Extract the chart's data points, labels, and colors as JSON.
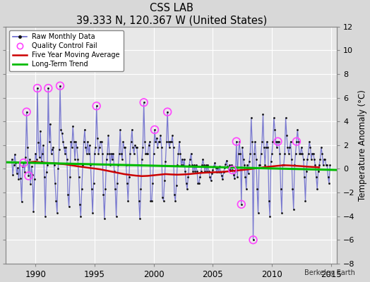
{
  "title": "CSS LAB",
  "subtitle": "39.333 N, 120.367 W (United States)",
  "ylabel": "Temperature Anomaly (°C)",
  "attribution": "Berkeley Earth",
  "ylim": [
    -8,
    12
  ],
  "yticks": [
    -8,
    -6,
    -4,
    -2,
    0,
    2,
    4,
    6,
    8,
    10,
    12
  ],
  "xlim": [
    1987.5,
    2015.5
  ],
  "xticks": [
    1990,
    1995,
    2000,
    2005,
    2010,
    2015
  ],
  "bg_color": "#d8d8d8",
  "plot_bg_color": "#e8e8e8",
  "grid_color": "#ffffff",
  "raw_line_color": "#6666cc",
  "dot_color": "#111111",
  "moving_avg_color": "#cc0000",
  "trend_color": "#00bb00",
  "qc_fail_color": "#ff44ff",
  "raw_data": [
    [
      1988.0,
      0.8
    ],
    [
      1988.083,
      -0.5
    ],
    [
      1988.167,
      0.3
    ],
    [
      1988.25,
      1.2
    ],
    [
      1988.333,
      0.5
    ],
    [
      1988.417,
      -0.4
    ],
    [
      1988.5,
      0.1
    ],
    [
      1988.583,
      -0.9
    ],
    [
      1988.667,
      0.5
    ],
    [
      1988.75,
      -0.8
    ],
    [
      1988.833,
      -2.8
    ],
    [
      1988.917,
      0.2
    ],
    [
      1989.0,
      0.5
    ],
    [
      1989.083,
      -0.3
    ],
    [
      1989.167,
      1.0
    ],
    [
      1989.25,
      4.8
    ],
    [
      1989.333,
      1.8
    ],
    [
      1989.417,
      -0.6
    ],
    [
      1989.5,
      0.8
    ],
    [
      1989.583,
      -1.3
    ],
    [
      1989.667,
      0.2
    ],
    [
      1989.75,
      -0.5
    ],
    [
      1989.833,
      -3.6
    ],
    [
      1989.917,
      -0.9
    ],
    [
      1990.0,
      1.3
    ],
    [
      1990.083,
      0.8
    ],
    [
      1990.167,
      6.8
    ],
    [
      1990.25,
      2.2
    ],
    [
      1990.333,
      1.0
    ],
    [
      1990.417,
      3.2
    ],
    [
      1990.5,
      0.6
    ],
    [
      1990.583,
      1.3
    ],
    [
      1990.667,
      2.0
    ],
    [
      1990.75,
      -0.7
    ],
    [
      1990.833,
      -4.0
    ],
    [
      1990.917,
      -0.3
    ],
    [
      1991.0,
      0.3
    ],
    [
      1991.083,
      6.8
    ],
    [
      1991.167,
      2.3
    ],
    [
      1991.25,
      3.8
    ],
    [
      1991.333,
      1.3
    ],
    [
      1991.417,
      1.6
    ],
    [
      1991.5,
      1.8
    ],
    [
      1991.583,
      0.3
    ],
    [
      1991.667,
      -1.2
    ],
    [
      1991.75,
      -2.7
    ],
    [
      1991.833,
      -3.7
    ],
    [
      1991.917,
      0.0
    ],
    [
      1992.0,
      1.6
    ],
    [
      1992.083,
      7.0
    ],
    [
      1992.167,
      3.3
    ],
    [
      1992.25,
      3.0
    ],
    [
      1992.333,
      2.3
    ],
    [
      1992.417,
      1.8
    ],
    [
      1992.5,
      1.3
    ],
    [
      1992.583,
      1.8
    ],
    [
      1992.667,
      0.8
    ],
    [
      1992.75,
      -2.2
    ],
    [
      1992.833,
      -3.2
    ],
    [
      1992.917,
      -0.7
    ],
    [
      1993.0,
      2.3
    ],
    [
      1993.083,
      1.8
    ],
    [
      1993.167,
      3.6
    ],
    [
      1993.25,
      2.3
    ],
    [
      1993.333,
      0.8
    ],
    [
      1993.417,
      2.3
    ],
    [
      1993.5,
      1.8
    ],
    [
      1993.583,
      0.8
    ],
    [
      1993.667,
      -0.7
    ],
    [
      1993.75,
      -3.0
    ],
    [
      1993.833,
      -4.0
    ],
    [
      1993.917,
      -1.7
    ],
    [
      1994.0,
      0.3
    ],
    [
      1994.083,
      2.3
    ],
    [
      1994.167,
      3.3
    ],
    [
      1994.25,
      1.8
    ],
    [
      1994.333,
      1.3
    ],
    [
      1994.417,
      2.3
    ],
    [
      1994.5,
      1.3
    ],
    [
      1994.583,
      2.0
    ],
    [
      1994.667,
      0.3
    ],
    [
      1994.75,
      -1.7
    ],
    [
      1994.833,
      -3.7
    ],
    [
      1994.917,
      -1.2
    ],
    [
      1995.0,
      1.3
    ],
    [
      1995.083,
      1.8
    ],
    [
      1995.167,
      5.3
    ],
    [
      1995.25,
      2.6
    ],
    [
      1995.333,
      1.3
    ],
    [
      1995.417,
      1.8
    ],
    [
      1995.5,
      2.3
    ],
    [
      1995.583,
      2.3
    ],
    [
      1995.667,
      1.3
    ],
    [
      1995.75,
      -2.2
    ],
    [
      1995.833,
      -4.2
    ],
    [
      1995.917,
      -1.7
    ],
    [
      1996.0,
      0.8
    ],
    [
      1996.083,
      1.3
    ],
    [
      1996.167,
      2.8
    ],
    [
      1996.25,
      1.3
    ],
    [
      1996.333,
      0.3
    ],
    [
      1996.417,
      1.3
    ],
    [
      1996.5,
      0.8
    ],
    [
      1996.583,
      1.3
    ],
    [
      1996.667,
      -0.2
    ],
    [
      1996.75,
      -1.7
    ],
    [
      1996.833,
      -4.0
    ],
    [
      1996.917,
      -1.2
    ],
    [
      1997.0,
      0.3
    ],
    [
      1997.083,
      1.3
    ],
    [
      1997.167,
      3.3
    ],
    [
      1997.25,
      1.3
    ],
    [
      1997.333,
      0.8
    ],
    [
      1997.417,
      2.3
    ],
    [
      1997.5,
      1.8
    ],
    [
      1997.583,
      1.8
    ],
    [
      1997.667,
      0.3
    ],
    [
      1997.75,
      -1.2
    ],
    [
      1997.833,
      -2.7
    ],
    [
      1997.917,
      -0.7
    ],
    [
      1998.0,
      1.3
    ],
    [
      1998.083,
      2.3
    ],
    [
      1998.167,
      3.3
    ],
    [
      1998.25,
      1.8
    ],
    [
      1998.333,
      1.3
    ],
    [
      1998.417,
      2.0
    ],
    [
      1998.5,
      1.8
    ],
    [
      1998.583,
      1.8
    ],
    [
      1998.667,
      0.3
    ],
    [
      1998.75,
      -2.7
    ],
    [
      1998.833,
      -4.2
    ],
    [
      1998.917,
      -1.7
    ],
    [
      1999.0,
      0.8
    ],
    [
      1999.083,
      1.8
    ],
    [
      1999.167,
      5.6
    ],
    [
      1999.25,
      2.3
    ],
    [
      1999.333,
      1.3
    ],
    [
      1999.417,
      1.3
    ],
    [
      1999.5,
      1.3
    ],
    [
      1999.583,
      2.0
    ],
    [
      1999.667,
      2.3
    ],
    [
      1999.75,
      -2.7
    ],
    [
      1999.833,
      -2.7
    ],
    [
      1999.917,
      -1.2
    ],
    [
      2000.0,
      1.3
    ],
    [
      2000.083,
      3.3
    ],
    [
      2000.167,
      2.3
    ],
    [
      2000.25,
      2.6
    ],
    [
      2000.333,
      1.8
    ],
    [
      2000.417,
      2.3
    ],
    [
      2000.5,
      2.3
    ],
    [
      2000.583,
      2.8
    ],
    [
      2000.667,
      1.8
    ],
    [
      2000.75,
      -2.4
    ],
    [
      2000.833,
      -2.7
    ],
    [
      2000.917,
      -1.0
    ],
    [
      2001.0,
      0.6
    ],
    [
      2001.083,
      2.3
    ],
    [
      2001.167,
      4.8
    ],
    [
      2001.25,
      2.3
    ],
    [
      2001.333,
      1.8
    ],
    [
      2001.417,
      2.3
    ],
    [
      2001.5,
      2.3
    ],
    [
      2001.583,
      2.8
    ],
    [
      2001.667,
      1.8
    ],
    [
      2001.75,
      -2.2
    ],
    [
      2001.833,
      -2.7
    ],
    [
      2001.917,
      -1.4
    ],
    [
      2002.0,
      0.3
    ],
    [
      2002.083,
      1.3
    ],
    [
      2002.167,
      2.3
    ],
    [
      2002.25,
      1.3
    ],
    [
      2002.333,
      0.3
    ],
    [
      2002.417,
      0.8
    ],
    [
      2002.5,
      0.3
    ],
    [
      2002.583,
      0.8
    ],
    [
      2002.667,
      -0.2
    ],
    [
      2002.75,
      -1.2
    ],
    [
      2002.833,
      -1.7
    ],
    [
      2002.917,
      -0.7
    ],
    [
      2003.0,
      0.3
    ],
    [
      2003.083,
      0.8
    ],
    [
      2003.167,
      1.3
    ],
    [
      2003.25,
      0.3
    ],
    [
      2003.333,
      -0.2
    ],
    [
      2003.417,
      0.3
    ],
    [
      2003.5,
      -0.2
    ],
    [
      2003.583,
      0.3
    ],
    [
      2003.667,
      -0.2
    ],
    [
      2003.75,
      -1.2
    ],
    [
      2003.833,
      -1.2
    ],
    [
      2003.917,
      -0.7
    ],
    [
      2004.0,
      -0.2
    ],
    [
      2004.083,
      0.3
    ],
    [
      2004.167,
      0.8
    ],
    [
      2004.25,
      0.3
    ],
    [
      2004.333,
      -0.2
    ],
    [
      2004.417,
      0.3
    ],
    [
      2004.5,
      -0.2
    ],
    [
      2004.583,
      0.3
    ],
    [
      2004.667,
      -0.2
    ],
    [
      2004.75,
      -0.7
    ],
    [
      2004.833,
      -1.0
    ],
    [
      2004.917,
      -0.4
    ],
    [
      2005.0,
      -0.1
    ],
    [
      2005.083,
      0.2
    ],
    [
      2005.167,
      0.5
    ],
    [
      2005.25,
      0.1
    ],
    [
      2005.333,
      -0.3
    ],
    [
      2005.417,
      0.1
    ],
    [
      2005.5,
      -0.3
    ],
    [
      2005.583,
      0.2
    ],
    [
      2005.667,
      -0.3
    ],
    [
      2005.75,
      -0.6
    ],
    [
      2005.833,
      -0.9
    ],
    [
      2005.917,
      -0.3
    ],
    [
      2006.0,
      0.1
    ],
    [
      2006.083,
      0.4
    ],
    [
      2006.167,
      0.7
    ],
    [
      2006.25,
      0.2
    ],
    [
      2006.333,
      -0.1
    ],
    [
      2006.417,
      0.3
    ],
    [
      2006.5,
      -0.1
    ],
    [
      2006.583,
      0.3
    ],
    [
      2006.667,
      -0.1
    ],
    [
      2006.75,
      -0.5
    ],
    [
      2006.833,
      -0.8
    ],
    [
      2006.917,
      -0.2
    ],
    [
      2007.0,
      2.3
    ],
    [
      2007.083,
      -0.7
    ],
    [
      2007.167,
      1.3
    ],
    [
      2007.25,
      2.3
    ],
    [
      2007.333,
      1.3
    ],
    [
      2007.417,
      -3.0
    ],
    [
      2007.5,
      1.8
    ],
    [
      2007.583,
      0.8
    ],
    [
      2007.667,
      0.3
    ],
    [
      2007.75,
      -0.7
    ],
    [
      2007.833,
      -1.7
    ],
    [
      2007.917,
      0.3
    ],
    [
      2008.0,
      -0.4
    ],
    [
      2008.083,
      0.6
    ],
    [
      2008.167,
      1.3
    ],
    [
      2008.25,
      4.3
    ],
    [
      2008.333,
      2.3
    ],
    [
      2008.417,
      -6.0
    ],
    [
      2008.5,
      1.3
    ],
    [
      2008.583,
      2.3
    ],
    [
      2008.667,
      0.8
    ],
    [
      2008.75,
      -1.7
    ],
    [
      2008.833,
      -3.7
    ],
    [
      2008.917,
      0.3
    ],
    [
      2009.0,
      0.3
    ],
    [
      2009.083,
      1.3
    ],
    [
      2009.167,
      2.3
    ],
    [
      2009.25,
      4.6
    ],
    [
      2009.333,
      1.8
    ],
    [
      2009.417,
      0.3
    ],
    [
      2009.5,
      1.8
    ],
    [
      2009.583,
      2.3
    ],
    [
      2009.667,
      1.8
    ],
    [
      2009.75,
      -2.7
    ],
    [
      2009.833,
      -4.0
    ],
    [
      2009.917,
      0.6
    ],
    [
      2010.0,
      1.3
    ],
    [
      2010.083,
      2.3
    ],
    [
      2010.167,
      4.3
    ],
    [
      2010.25,
      3.3
    ],
    [
      2010.333,
      2.3
    ],
    [
      2010.417,
      1.8
    ],
    [
      2010.5,
      2.3
    ],
    [
      2010.583,
      2.3
    ],
    [
      2010.667,
      1.3
    ],
    [
      2010.75,
      -1.7
    ],
    [
      2010.833,
      -3.7
    ],
    [
      2010.917,
      0.3
    ],
    [
      2011.0,
      0.3
    ],
    [
      2011.083,
      1.3
    ],
    [
      2011.167,
      4.3
    ],
    [
      2011.25,
      2.8
    ],
    [
      2011.333,
      1.8
    ],
    [
      2011.417,
      1.3
    ],
    [
      2011.5,
      1.8
    ],
    [
      2011.583,
      2.3
    ],
    [
      2011.667,
      0.8
    ],
    [
      2011.75,
      -1.7
    ],
    [
      2011.833,
      -3.4
    ],
    [
      2011.917,
      0.3
    ],
    [
      2012.0,
      1.3
    ],
    [
      2012.083,
      2.3
    ],
    [
      2012.167,
      3.3
    ],
    [
      2012.25,
      2.3
    ],
    [
      2012.333,
      1.3
    ],
    [
      2012.417,
      1.3
    ],
    [
      2012.5,
      1.8
    ],
    [
      2012.583,
      1.3
    ],
    [
      2012.667,
      0.8
    ],
    [
      2012.75,
      -0.7
    ],
    [
      2012.833,
      -2.7
    ],
    [
      2012.917,
      -0.2
    ],
    [
      2013.0,
      0.8
    ],
    [
      2013.083,
      1.3
    ],
    [
      2013.167,
      2.3
    ],
    [
      2013.25,
      1.8
    ],
    [
      2013.333,
      0.8
    ],
    [
      2013.417,
      1.3
    ],
    [
      2013.5,
      1.3
    ],
    [
      2013.583,
      0.8
    ],
    [
      2013.667,
      0.3
    ],
    [
      2013.75,
      -0.7
    ],
    [
      2013.833,
      -1.7
    ],
    [
      2013.917,
      -0.2
    ],
    [
      2014.0,
      0.3
    ],
    [
      2014.083,
      0.8
    ],
    [
      2014.167,
      1.8
    ],
    [
      2014.25,
      1.3
    ],
    [
      2014.333,
      0.3
    ],
    [
      2014.417,
      0.8
    ],
    [
      2014.5,
      0.8
    ],
    [
      2014.583,
      0.3
    ],
    [
      2014.667,
      0.3
    ],
    [
      2014.75,
      -0.7
    ],
    [
      2014.833,
      -1.2
    ],
    [
      2014.917,
      0.3
    ]
  ],
  "qc_fail_points": [
    [
      1989.0,
      0.5
    ],
    [
      1989.417,
      -0.6
    ],
    [
      1989.25,
      4.8
    ],
    [
      1990.167,
      6.8
    ],
    [
      1991.083,
      6.8
    ],
    [
      1992.083,
      7.0
    ],
    [
      1995.167,
      5.3
    ],
    [
      1999.167,
      5.6
    ],
    [
      2000.083,
      3.3
    ],
    [
      2001.167,
      4.8
    ],
    [
      2006.667,
      -0.1
    ],
    [
      2007.0,
      2.3
    ],
    [
      2007.417,
      -3.0
    ],
    [
      2008.417,
      -6.0
    ],
    [
      2010.5,
      2.3
    ],
    [
      2012.083,
      2.3
    ]
  ],
  "moving_avg": [
    [
      1989.5,
      0.55
    ],
    [
      1990.0,
      0.6
    ],
    [
      1990.5,
      0.52
    ],
    [
      1991.0,
      0.5
    ],
    [
      1991.5,
      0.48
    ],
    [
      1992.0,
      0.42
    ],
    [
      1992.5,
      0.38
    ],
    [
      1993.0,
      0.3
    ],
    [
      1993.5,
      0.22
    ],
    [
      1994.0,
      0.15
    ],
    [
      1994.5,
      0.08
    ],
    [
      1995.0,
      0.02
    ],
    [
      1995.5,
      -0.05
    ],
    [
      1996.0,
      -0.15
    ],
    [
      1996.5,
      -0.25
    ],
    [
      1997.0,
      -0.35
    ],
    [
      1997.5,
      -0.45
    ],
    [
      1998.0,
      -0.52
    ],
    [
      1998.5,
      -0.58
    ],
    [
      1999.0,
      -0.62
    ],
    [
      1999.5,
      -0.6
    ],
    [
      2000.0,
      -0.55
    ],
    [
      2000.5,
      -0.5
    ],
    [
      2001.0,
      -0.45
    ],
    [
      2001.5,
      -0.48
    ],
    [
      2002.0,
      -0.5
    ],
    [
      2002.5,
      -0.48
    ],
    [
      2003.0,
      -0.45
    ],
    [
      2003.5,
      -0.4
    ],
    [
      2004.0,
      -0.35
    ],
    [
      2004.5,
      -0.32
    ],
    [
      2005.0,
      -0.3
    ],
    [
      2005.5,
      -0.28
    ],
    [
      2006.0,
      -0.25
    ],
    [
      2006.5,
      -0.2
    ],
    [
      2007.0,
      -0.15
    ],
    [
      2007.5,
      -0.1
    ],
    [
      2008.0,
      -0.05
    ],
    [
      2008.5,
      0.02
    ],
    [
      2009.0,
      0.08
    ],
    [
      2009.5,
      0.15
    ],
    [
      2010.0,
      0.2
    ],
    [
      2010.5,
      0.25
    ],
    [
      2011.0,
      0.3
    ],
    [
      2011.5,
      0.28
    ],
    [
      2012.0,
      0.25
    ],
    [
      2012.5,
      0.22
    ],
    [
      2013.0,
      0.18
    ],
    [
      2013.5,
      0.15
    ],
    [
      2014.0,
      0.12
    ]
  ],
  "trend_x": [
    1987.5,
    2015.5
  ],
  "trend_y": [
    0.55,
    -0.1
  ]
}
